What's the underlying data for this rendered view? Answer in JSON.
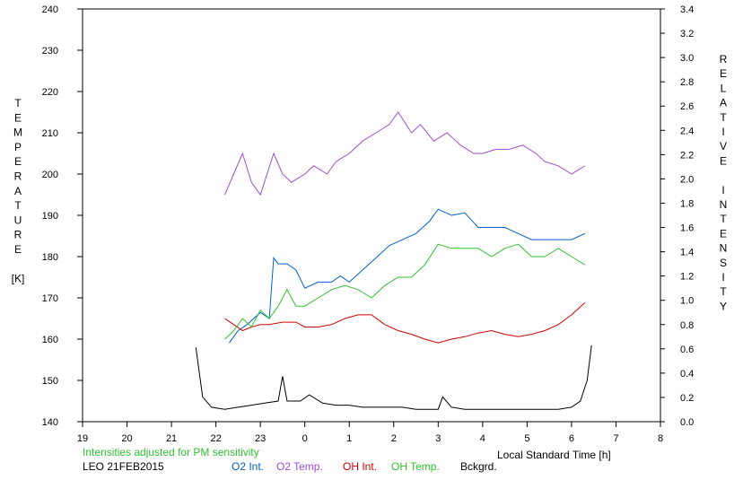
{
  "chart_data": {
    "type": "line",
    "title": "",
    "xlabel": "Local Standard Time [h]",
    "ylabel_left_letters": [
      "T",
      "E",
      "M",
      "P",
      "E",
      "R",
      "A",
      "T",
      "U",
      "R",
      "E",
      "",
      "[K]"
    ],
    "ylabel_right_letters": [
      "R",
      "E",
      "L",
      "A",
      "T",
      "I",
      "V",
      "E",
      "",
      "I",
      "N",
      "T",
      "E",
      "N",
      "S",
      "I",
      "T",
      "Y"
    ],
    "x_range": [
      19,
      32
    ],
    "x_tick_values": [
      19,
      20,
      21,
      22,
      23,
      24,
      25,
      26,
      27,
      28,
      29,
      30,
      31,
      32
    ],
    "x_tick_labels": [
      "19",
      "20",
      "21",
      "22",
      "23",
      "0",
      "1",
      "2",
      "3",
      "4",
      "5",
      "6",
      "7",
      "8"
    ],
    "ylim_left": [
      140,
      240
    ],
    "y_ticks_left": [
      "140",
      "150",
      "160",
      "170",
      "180",
      "190",
      "200",
      "210",
      "220",
      "230",
      "240"
    ],
    "ylim_right": [
      0.0,
      3.4
    ],
    "y_ticks_right": [
      "0.0",
      "0.2",
      "0.4",
      "0.6",
      "0.8",
      "1.0",
      "1.2",
      "1.4",
      "1.6",
      "1.8",
      "2.0",
      "2.2",
      "2.4",
      "2.6",
      "2.8",
      "3.0",
      "3.2",
      "3.4"
    ],
    "note": "Intensities adjusted for PM sensitivity",
    "station_date": "LEO 21FEB2015",
    "series": [
      {
        "name": "O2 Int.",
        "axis": "right",
        "color": "#0060d0",
        "x": [
          22.3,
          22.5,
          22.7,
          23.0,
          23.2,
          23.3,
          23.4,
          23.6,
          23.8,
          24.0,
          24.3,
          24.6,
          24.8,
          25.0,
          25.3,
          25.6,
          25.9,
          26.2,
          26.5,
          26.8,
          27.0,
          27.3,
          27.6,
          27.9,
          28.2,
          28.5,
          28.8,
          29.1,
          29.4,
          29.7,
          30.0,
          30.3
        ],
        "y": [
          0.65,
          0.75,
          0.8,
          0.9,
          0.85,
          1.35,
          1.3,
          1.3,
          1.25,
          1.1,
          1.15,
          1.15,
          1.2,
          1.15,
          1.25,
          1.35,
          1.45,
          1.5,
          1.55,
          1.65,
          1.75,
          1.7,
          1.72,
          1.6,
          1.6,
          1.6,
          1.55,
          1.5,
          1.5,
          1.5,
          1.5,
          1.55
        ]
      },
      {
        "name": "O2 Temp.",
        "axis": "left",
        "color": "#9c4fd0",
        "x": [
          22.2,
          22.4,
          22.6,
          22.8,
          23.0,
          23.3,
          23.5,
          23.7,
          24.0,
          24.2,
          24.5,
          24.7,
          25.0,
          25.3,
          25.6,
          25.9,
          26.1,
          26.4,
          26.6,
          26.9,
          27.2,
          27.5,
          27.8,
          28.0,
          28.3,
          28.6,
          28.9,
          29.2,
          29.4,
          29.7,
          30.0,
          30.3
        ],
        "y": [
          195,
          200,
          205,
          198,
          195,
          205,
          200,
          198,
          200,
          202,
          200,
          203,
          205,
          208,
          210,
          212,
          215,
          210,
          212,
          208,
          210,
          207,
          205,
          205,
          206,
          206,
          207,
          205,
          203,
          202,
          200,
          202
        ]
      },
      {
        "name": "OH Int.",
        "axis": "right",
        "color": "#d00000",
        "x": [
          22.2,
          22.4,
          22.6,
          22.8,
          23.0,
          23.2,
          23.5,
          23.8,
          24.0,
          24.3,
          24.6,
          24.9,
          25.2,
          25.5,
          25.8,
          26.1,
          26.4,
          26.7,
          27.0,
          27.3,
          27.6,
          27.9,
          28.2,
          28.5,
          28.8,
          29.1,
          29.4,
          29.7,
          30.0,
          30.3
        ],
        "y": [
          0.85,
          0.8,
          0.75,
          0.78,
          0.8,
          0.8,
          0.82,
          0.82,
          0.78,
          0.78,
          0.8,
          0.85,
          0.88,
          0.88,
          0.8,
          0.75,
          0.72,
          0.68,
          0.65,
          0.68,
          0.7,
          0.73,
          0.75,
          0.72,
          0.7,
          0.72,
          0.75,
          0.8,
          0.88,
          0.98
        ]
      },
      {
        "name": "OH Temp.",
        "axis": "left",
        "color": "#30c030",
        "x": [
          22.2,
          22.4,
          22.6,
          22.8,
          23.0,
          23.2,
          23.4,
          23.6,
          23.8,
          24.0,
          24.3,
          24.6,
          24.9,
          25.2,
          25.5,
          25.8,
          26.1,
          26.4,
          26.7,
          27.0,
          27.3,
          27.6,
          27.9,
          28.2,
          28.5,
          28.8,
          29.1,
          29.4,
          29.7,
          30.0,
          30.3
        ],
        "y": [
          160,
          162,
          165,
          163,
          167,
          165,
          168,
          172,
          168,
          168,
          170,
          172,
          173,
          172,
          170,
          173,
          175,
          175,
          178,
          183,
          182,
          182,
          182,
          180,
          182,
          183,
          180,
          180,
          182,
          180,
          178
        ]
      },
      {
        "name": "Bckgrd.",
        "axis": "left",
        "color": "#000000",
        "x": [
          21.55,
          21.7,
          21.9,
          22.2,
          22.5,
          22.8,
          23.1,
          23.4,
          23.5,
          23.6,
          23.9,
          24.1,
          24.4,
          24.7,
          25.0,
          25.3,
          25.6,
          25.9,
          26.2,
          26.5,
          26.8,
          27.0,
          27.1,
          27.3,
          27.6,
          27.9,
          28.2,
          28.5,
          28.8,
          29.1,
          29.4,
          29.7,
          30.0,
          30.2,
          30.35,
          30.45
        ],
        "y": [
          158,
          146,
          143.5,
          143,
          143.5,
          144,
          144.5,
          145,
          151,
          145,
          145,
          146.5,
          144.5,
          144,
          144,
          143.5,
          143.5,
          143.5,
          143.5,
          143,
          143,
          143,
          146,
          143.5,
          143,
          143,
          143,
          143,
          143,
          143,
          143,
          143,
          143.5,
          145,
          150,
          158.5
        ]
      }
    ]
  }
}
